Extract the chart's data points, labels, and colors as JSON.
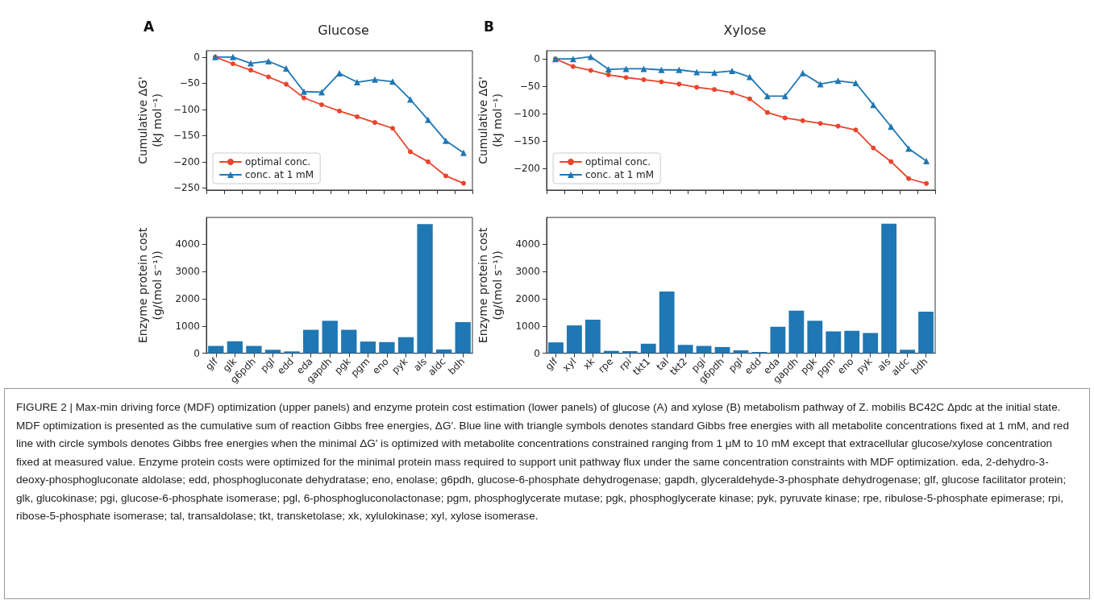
{
  "chart_data": [
    {
      "type": "line",
      "title": "Glucose",
      "ylabel": "Cumulative ΔG'\n(kJ mol⁻¹)",
      "annotations": [
        "A",
        "FIGURE 2 | Max-min driving force (MDF) optimization (upper panels) and enzyme protein cost estimation (lower panels) of glucose (A) and xylose (B) metabolism pathway of Z. mobilis BC42C Δpdc at the initial state. MDF optimization is presented as the cumulative sum of reaction Gibbs free energies, ΔG′. Blue line with triangle symbols denotes standard Gibbs free energies with all metabolite concentrations fixed at 1 mM, and red line with circle symbols denotes Gibbs free energies when the minimal ΔG′ is optimized with metabolite concentrations constrained ranging from 1 μM to 10 mM except that extracellular glucose/xylose concentration fixed at measured value. Enzyme protein costs were optimized for the minimal protein mass required to support unit pathway flux under the same concentration constraints with MDF optimization. eda, 2-dehydro-3-deoxy-phosphogluconate aldolase; edd, phosphogluconate dehydratase; eno, enolase; g6pdh, glucose-6-phosphate dehydrogenase; gapdh, glyceraldehyde-3-phosphate dehydrogenase; glf, glucose facilitator protein; glk, glucokinase; pgi, glucose-6-phosphate isomerase; pgl, 6-phosphogluconolactonase; pgm, phosphoglycerate mutase; pgk, phosphoglycerate kinase; pyk, pyruvate kinase; rpe, ribulose-5-phosphate epimerase; rpi, ribose-5-phosphate isomerase; tal, transaldolase; tkt, transketolase; xk, xylulokinase; xyl, xylose isomerase."
      ],
      "categories": [
        null,
        null,
        null,
        null,
        null,
        null,
        null,
        null,
        null,
        null,
        null,
        null,
        null,
        null,
        null
      ],
      "ylim": [
        -254,
        12
      ],
      "yticks": [
        {
          "value": -250,
          "label": "−250"
        },
        {
          "value": -200,
          "label": "−200"
        },
        {
          "value": -150,
          "label": "−150"
        },
        {
          "value": -100,
          "label": "−100"
        },
        {
          "value": -50,
          "label": "−50"
        },
        0
      ],
      "tick_labels": "y",
      "legend": "lower left",
      "grid": false,
      "line_style": "solid",
      "series": [
        {
          "name": "optimal conc.",
          "color": "#e8452c",
          "marker": "circle",
          "values": [
            0,
            -13,
            -25,
            -38,
            -52,
            -78,
            -91,
            -103,
            -114,
            -125,
            -136,
            -181,
            -200,
            -227,
            -241
          ]
        },
        {
          "name": "conc. at 1 mM",
          "color": "#1f77b4",
          "marker": "triangle",
          "values": [
            0,
            0,
            -12,
            -8,
            -22,
            -66,
            -67,
            -31,
            -48,
            -43,
            -47,
            -81,
            -120,
            -160,
            -183
          ]
        }
      ]
    },
    {
      "type": "line",
      "title": "Xylose",
      "ylabel": "Cumulative ΔG'\n(kJ mol⁻¹)",
      "annotations": [
        "B"
      ],
      "categories": [
        null,
        null,
        null,
        null,
        null,
        null,
        null,
        null,
        null,
        null,
        null,
        null,
        null,
        null,
        null,
        null,
        null,
        null,
        null,
        null,
        null,
        null
      ],
      "ylim": [
        -240,
        15
      ],
      "yticks": [
        {
          "value": -200,
          "label": "−200"
        },
        {
          "value": -150,
          "label": "−150"
        },
        {
          "value": -100,
          "label": "−100"
        },
        {
          "value": -50,
          "label": "−50"
        },
        0
      ],
      "tick_labels": "y",
      "legend": "lower left",
      "grid": false,
      "line_style": "solid",
      "series": [
        {
          "name": "optimal conc.",
          "color": "#e8452c",
          "marker": "circle",
          "values": [
            0,
            -14,
            -21,
            -29,
            -34,
            -38,
            -42,
            -46,
            -52,
            -56,
            -62,
            -73,
            -98,
            -108,
            -113,
            -118,
            -123,
            -130,
            -163,
            -188,
            -219,
            -228
          ]
        },
        {
          "name": "conc. at 1 mM",
          "color": "#1f77b4",
          "marker": "triangle",
          "values": [
            0,
            0,
            4,
            -19,
            -18,
            -18,
            -20,
            -20,
            -24,
            -25,
            -22,
            -33,
            -68,
            -68,
            -26,
            -46,
            -40,
            -44,
            -84,
            -124,
            -164,
            -187
          ]
        }
      ]
    },
    {
      "type": "bar",
      "ylabel": "Enzyme protein cost\n(g/(mol s⁻¹))",
      "color": "#1f77b4",
      "grid": false,
      "categories": [
        "glf",
        "glk",
        "g6pdh",
        "pgl",
        "edd",
        "eda",
        "gapdh",
        "pgk",
        "pgm",
        "eno",
        "pyk",
        "als",
        "aldc",
        "bdh"
      ],
      "values": [
        270,
        440,
        270,
        130,
        70,
        860,
        1190,
        860,
        430,
        410,
        590,
        4730,
        140,
        1140
      ],
      "ylim": [
        0,
        4970
      ],
      "yticks": [
        0,
        1000,
        2000,
        3000,
        4000
      ]
    },
    {
      "type": "bar",
      "ylabel": "Enzyme protein cost\n(g/(mol s⁻¹))",
      "color": "#1f77b4",
      "grid": false,
      "categories": [
        "glf",
        "xyl",
        "xk",
        "rpe",
        "rpi",
        "tkt1",
        "tal",
        "tkt2",
        "pgi",
        "g6pdh",
        "pgl",
        "edd",
        "eda",
        "gapdh",
        "pgk",
        "pgm",
        "eno",
        "pyk",
        "als",
        "aldc",
        "bdh"
      ],
      "values": [
        400,
        1020,
        1230,
        90,
        80,
        350,
        2260,
        310,
        270,
        230,
        110,
        50,
        970,
        1560,
        1190,
        800,
        820,
        740,
        4740,
        130,
        1520
      ],
      "ylim": [
        0,
        4970
      ],
      "yticks": [
        0,
        1000,
        2000,
        3000,
        4000
      ]
    }
  ]
}
